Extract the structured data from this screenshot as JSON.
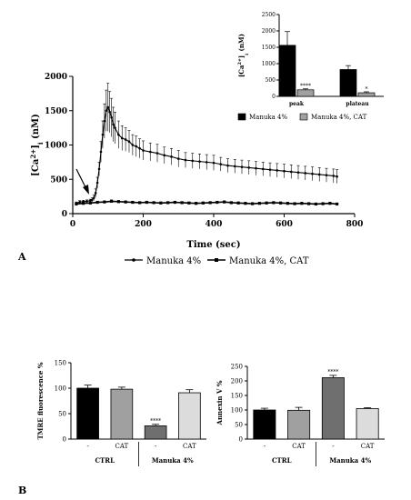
{
  "panel_labels": [
    "A",
    "B"
  ],
  "chart_data": [
    {
      "type": "line",
      "ylabel_main": "[Ca",
      "ylabel_sup": "2+",
      "ylabel_rest": "]",
      "ylabel_sub": "i",
      "ylabel_unit": " (nM)",
      "xlabel": "Time (sec)",
      "xlim": [
        0,
        800
      ],
      "ylim": [
        0,
        2000
      ],
      "xticks": [
        "0",
        "200",
        "400",
        "600",
        "800"
      ],
      "yticks": [
        "0",
        "500",
        "1000",
        "1500",
        "2000"
      ],
      "annotation": "arrow at ~t=50 sec (stimulus)",
      "series": [
        {
          "name": "Manuka 4%",
          "x": [
            10,
            20,
            30,
            40,
            50,
            55,
            60,
            65,
            70,
            75,
            80,
            85,
            90,
            95,
            100,
            105,
            110,
            115,
            120,
            130,
            140,
            150,
            160,
            170,
            180,
            190,
            200,
            220,
            240,
            260,
            280,
            300,
            320,
            340,
            360,
            380,
            400,
            420,
            440,
            460,
            480,
            500,
            520,
            540,
            560,
            580,
            600,
            620,
            640,
            660,
            680,
            700,
            720,
            740,
            750
          ],
          "y": [
            150,
            170,
            175,
            180,
            190,
            200,
            230,
            300,
            450,
            650,
            900,
            1150,
            1350,
            1500,
            1550,
            1480,
            1400,
            1300,
            1250,
            1150,
            1100,
            1080,
            1050,
            1000,
            980,
            950,
            920,
            900,
            880,
            850,
            830,
            800,
            780,
            770,
            760,
            750,
            740,
            720,
            700,
            690,
            680,
            670,
            660,
            650,
            640,
            630,
            620,
            610,
            600,
            590,
            580,
            570,
            560,
            550,
            540
          ],
          "err": [
            20,
            20,
            20,
            20,
            20,
            30,
            40,
            60,
            80,
            100,
            150,
            200,
            250,
            300,
            350,
            300,
            280,
            250,
            230,
            200,
            180,
            170,
            160,
            150,
            150,
            140,
            140,
            130,
            130,
            120,
            120,
            120,
            110,
            110,
            110,
            110,
            110,
            100,
            100,
            100,
            100,
            100,
            100,
            100,
            100,
            100,
            100,
            100,
            100,
            100,
            100,
            100,
            100,
            100,
            100
          ]
        },
        {
          "name": "Manuka 4%, CAT",
          "x": [
            10,
            30,
            50,
            70,
            90,
            110,
            130,
            150,
            170,
            190,
            210,
            230,
            250,
            270,
            290,
            310,
            330,
            350,
            370,
            390,
            410,
            430,
            450,
            470,
            490,
            510,
            530,
            550,
            570,
            590,
            610,
            630,
            650,
            670,
            690,
            710,
            730,
            750
          ],
          "y": [
            140,
            150,
            155,
            165,
            170,
            180,
            175,
            170,
            165,
            160,
            165,
            160,
            155,
            160,
            165,
            160,
            155,
            150,
            155,
            160,
            165,
            170,
            160,
            155,
            150,
            145,
            150,
            155,
            160,
            155,
            150,
            145,
            150,
            145,
            140,
            145,
            150,
            140
          ],
          "err": [
            10,
            10,
            10,
            15,
            15,
            20,
            15,
            15,
            15,
            15,
            15,
            15,
            15,
            15,
            15,
            15,
            15,
            15,
            15,
            15,
            15,
            15,
            15,
            15,
            15,
            15,
            15,
            15,
            15,
            15,
            15,
            15,
            15,
            15,
            15,
            15,
            15,
            15
          ]
        }
      ],
      "legend_entries": [
        "Manuka 4%",
        "Manuka 4%, CAT"
      ]
    },
    {
      "type": "bar",
      "ylabel_main": "[Ca",
      "ylabel_sup": "2+",
      "ylabel_rest": "]",
      "ylabel_sub": "i",
      "ylabel_unit": " (nM)",
      "ylim": [
        0,
        2500
      ],
      "yticks": [
        "0",
        "500",
        "1000",
        "1500",
        "2000",
        "2500"
      ],
      "categories": [
        "peak",
        "plateau"
      ],
      "series": [
        {
          "name": "Manuka 4%",
          "values": [
            1560,
            820
          ],
          "err": [
            420,
            120
          ],
          "color": "#000000"
        },
        {
          "name": "Manuka 4%, CAT",
          "values": [
            200,
            110
          ],
          "err": [
            30,
            30
          ],
          "color": "#a0a0a0"
        }
      ],
      "significance": [
        "****",
        "*"
      ],
      "legend_entries": [
        "Manuka 4%",
        "Manuka 4%, CAT"
      ]
    },
    {
      "type": "bar",
      "ylabel": "TMRE fluorescence %",
      "ylim": [
        0,
        150
      ],
      "yticks": [
        "0",
        "50",
        "100",
        "150"
      ],
      "categories": [
        "-",
        "CAT",
        "-",
        "CAT"
      ],
      "groups": [
        "CTRL",
        "Manuka 4%"
      ],
      "values": [
        100,
        98,
        26,
        91
      ],
      "err": [
        6,
        4,
        3,
        6
      ],
      "colors": [
        "#000000",
        "#a0a0a0",
        "#6f6f6f",
        "#dcdcdc"
      ],
      "significance": [
        "",
        "",
        "****",
        ""
      ]
    },
    {
      "type": "bar",
      "ylabel": "Annexin V %",
      "ylim": [
        0,
        250
      ],
      "yticks": [
        "0",
        "50",
        "100",
        "150",
        "200",
        "250"
      ],
      "categories": [
        "-",
        "CAT",
        "-",
        "CAT"
      ],
      "groups": [
        "CTRL",
        "Manuka 4%"
      ],
      "values": [
        100,
        99,
        211,
        105
      ],
      "err": [
        6,
        10,
        8,
        3
      ],
      "colors": [
        "#000000",
        "#a0a0a0",
        "#6f6f6f",
        "#dcdcdc"
      ],
      "significance": [
        "",
        "",
        "****",
        ""
      ]
    }
  ]
}
